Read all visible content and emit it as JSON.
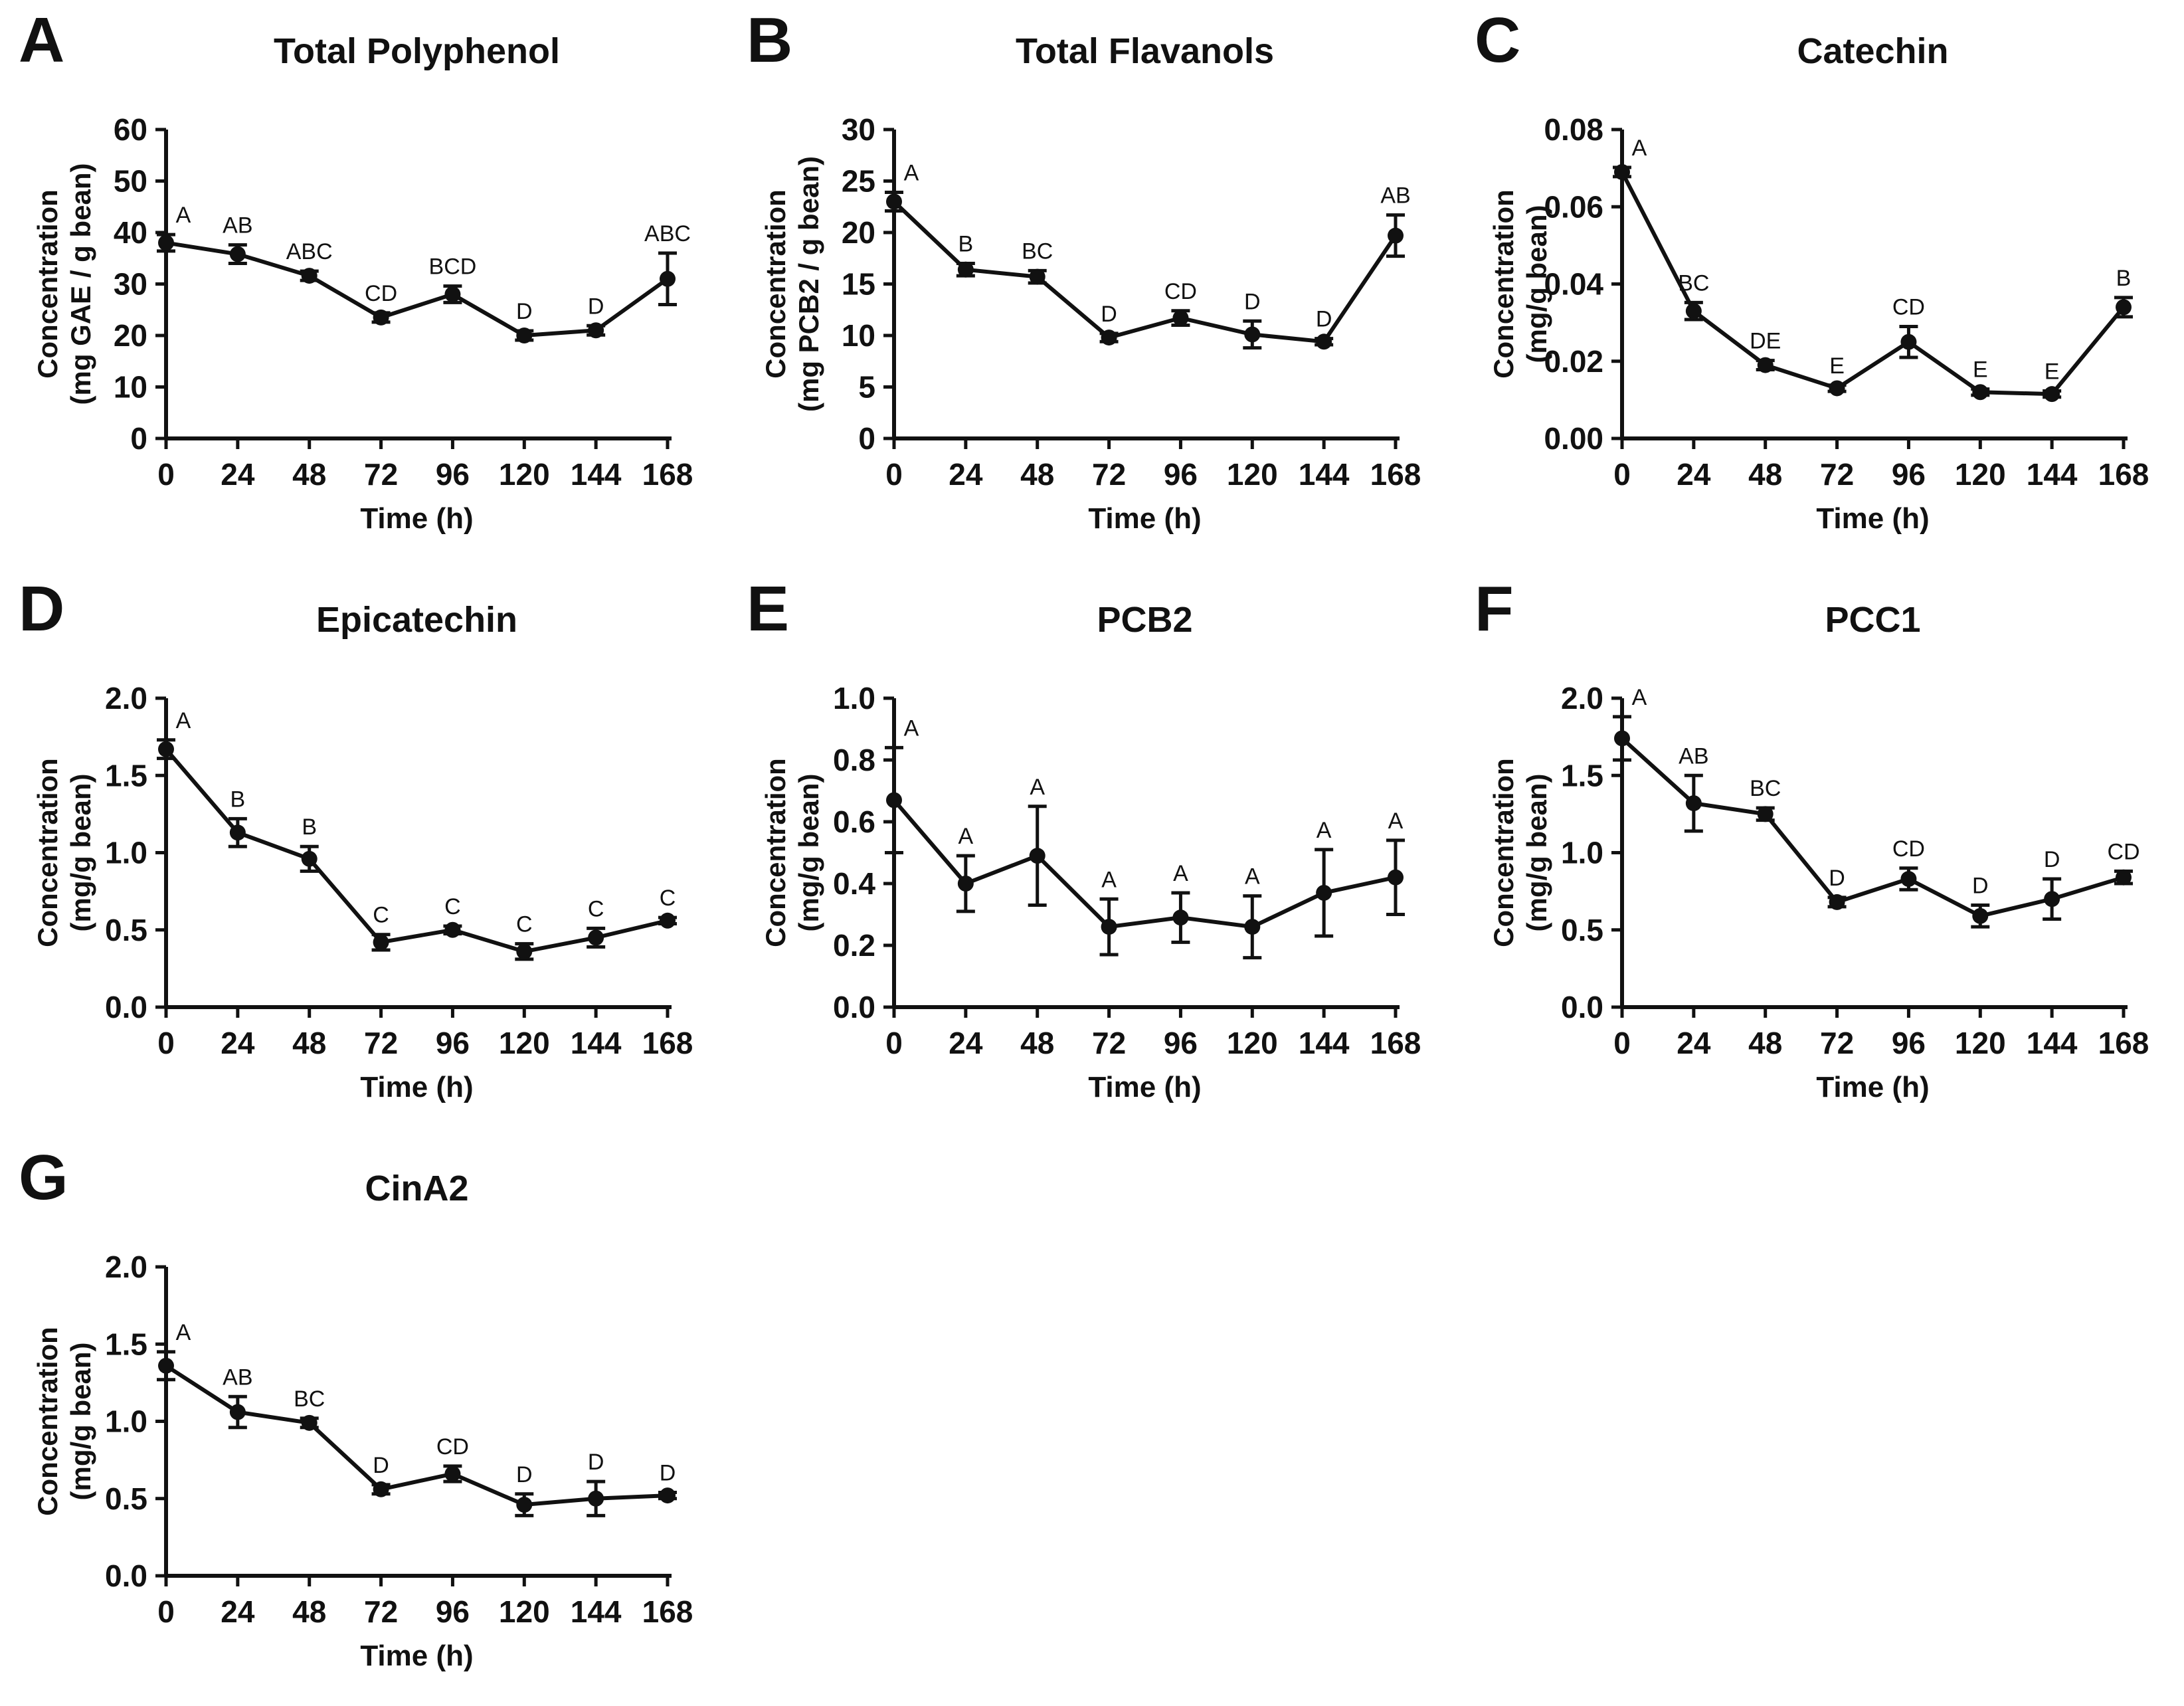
{
  "figure": {
    "background": "#ffffff",
    "ink_color": "#111111",
    "xlabel": "Time (h)",
    "x_categories": [
      "0",
      "24",
      "48",
      "72",
      "96",
      "120",
      "144",
      "168"
    ]
  },
  "chart_data": [
    {
      "type": "line",
      "panel": "A",
      "title": "Total Polyphenol",
      "ylabel_line1": "Concentration",
      "ylabel_line2": "(mg GAE / g bean)",
      "xlabel": "Time (h)",
      "x": [
        0,
        24,
        48,
        72,
        96,
        120,
        144,
        168
      ],
      "values": [
        38.0,
        35.8,
        31.6,
        23.5,
        28.0,
        20.0,
        21.0,
        31.0
      ],
      "errors": [
        1.6,
        1.8,
        0.9,
        0.9,
        1.6,
        0.9,
        0.9,
        5.0
      ],
      "point_labels": [
        "A",
        "AB",
        "ABC",
        "CD",
        "BCD",
        "D",
        "D",
        "ABC"
      ],
      "ylim": [
        0,
        60
      ],
      "yticks": [
        0,
        10,
        20,
        30,
        40,
        50,
        60
      ],
      "ytick_labels": [
        "0",
        "10",
        "20",
        "30",
        "40",
        "50",
        "60"
      ],
      "grid": false,
      "legend": null
    },
    {
      "type": "line",
      "panel": "B",
      "title": "Total Flavanols",
      "ylabel_line1": "Concentration",
      "ylabel_line2": "(mg PCB2 / g bean)",
      "xlabel": "Time (h)",
      "x": [
        0,
        24,
        48,
        72,
        96,
        120,
        144,
        168
      ],
      "values": [
        23.0,
        16.4,
        15.7,
        9.8,
        11.7,
        10.1,
        9.4,
        19.7
      ],
      "errors": [
        0.9,
        0.6,
        0.6,
        0.4,
        0.7,
        1.3,
        0.3,
        2.0
      ],
      "point_labels": [
        "A",
        "B",
        "BC",
        "D",
        "CD",
        "D",
        "D",
        "AB"
      ],
      "ylim": [
        0,
        30
      ],
      "yticks": [
        0,
        5,
        10,
        15,
        20,
        25,
        30
      ],
      "ytick_labels": [
        "0",
        "5",
        "10",
        "15",
        "20",
        "25",
        "30"
      ],
      "grid": false,
      "legend": null
    },
    {
      "type": "line",
      "panel": "C",
      "title": "Catechin",
      "ylabel_line1": "Concentration",
      "ylabel_line2": "(mg/g bean)",
      "xlabel": "Time (h)",
      "x": [
        0,
        24,
        48,
        72,
        96,
        120,
        144,
        168
      ],
      "values": [
        0.069,
        0.033,
        0.019,
        0.013,
        0.025,
        0.012,
        0.0115,
        0.034
      ],
      "errors": [
        0.0012,
        0.0022,
        0.0012,
        0.0008,
        0.004,
        0.0008,
        0.0008,
        0.0025
      ],
      "point_labels": [
        "A",
        "BC",
        "DE",
        "E",
        "CD",
        "E",
        "E",
        "B"
      ],
      "ylim": [
        0,
        0.08
      ],
      "yticks": [
        0,
        0.02,
        0.04,
        0.06,
        0.08
      ],
      "ytick_labels": [
        "0.00",
        "0.02",
        "0.04",
        "0.06",
        "0.08"
      ],
      "grid": false,
      "legend": null
    },
    {
      "type": "line",
      "panel": "D",
      "title": "Epicatechin",
      "ylabel_line1": "Concentration",
      "ylabel_line2": "(mg/g bean)",
      "xlabel": "Time (h)",
      "x": [
        0,
        24,
        48,
        72,
        96,
        120,
        144,
        168
      ],
      "values": [
        1.67,
        1.13,
        0.96,
        0.42,
        0.5,
        0.36,
        0.45,
        0.56
      ],
      "errors": [
        0.06,
        0.09,
        0.08,
        0.05,
        0.025,
        0.05,
        0.06,
        0.02
      ],
      "point_labels": [
        "A",
        "B",
        "B",
        "C",
        "C",
        "C",
        "C",
        "C"
      ],
      "ylim": [
        0,
        2.0
      ],
      "yticks": [
        0,
        0.5,
        1.0,
        1.5,
        2.0
      ],
      "ytick_labels": [
        "0.0",
        "0.5",
        "1.0",
        "1.5",
        "2.0"
      ],
      "grid": false,
      "legend": null
    },
    {
      "type": "line",
      "panel": "E",
      "title": "PCB2",
      "ylabel_line1": "Concentration",
      "ylabel_line2": "(mg/g bean)",
      "xlabel": "Time (h)",
      "x": [
        0,
        24,
        48,
        72,
        96,
        120,
        144,
        168
      ],
      "values": [
        0.67,
        0.4,
        0.49,
        0.26,
        0.29,
        0.26,
        0.37,
        0.42
      ],
      "errors": [
        0.17,
        0.09,
        0.16,
        0.09,
        0.08,
        0.1,
        0.14,
        0.12
      ],
      "point_labels": [
        "A",
        "A",
        "A",
        "A",
        "A",
        "A",
        "A",
        "A"
      ],
      "ylim": [
        0,
        1.0
      ],
      "yticks": [
        0,
        0.2,
        0.4,
        0.6,
        0.8,
        1.0
      ],
      "ytick_labels": [
        "0.0",
        "0.2",
        "0.4",
        "0.6",
        "0.8",
        "1.0"
      ],
      "grid": false,
      "legend": null
    },
    {
      "type": "line",
      "panel": "F",
      "title": "PCC1",
      "ylabel_line1": "Concentration",
      "ylabel_line2": "(mg/g bean)",
      "xlabel": "Time (h)",
      "x": [
        0,
        24,
        48,
        72,
        96,
        120,
        144,
        168
      ],
      "values": [
        1.74,
        1.32,
        1.25,
        0.68,
        0.83,
        0.59,
        0.7,
        0.84
      ],
      "errors": [
        0.14,
        0.18,
        0.04,
        0.03,
        0.07,
        0.07,
        0.13,
        0.04
      ],
      "point_labels": [
        "A",
        "AB",
        "BC",
        "D",
        "CD",
        "D",
        "D",
        "CD"
      ],
      "ylim": [
        0,
        2.0
      ],
      "yticks": [
        0,
        0.5,
        1.0,
        1.5,
        2.0
      ],
      "ytick_labels": [
        "0.0",
        "0.5",
        "1.0",
        "1.5",
        "2.0"
      ],
      "grid": false,
      "legend": null
    },
    {
      "type": "line",
      "panel": "G",
      "title": "CinA2",
      "ylabel_line1": "Concentration",
      "ylabel_line2": "(mg/g bean)",
      "xlabel": "Time (h)",
      "x": [
        0,
        24,
        48,
        72,
        96,
        120,
        144,
        168
      ],
      "values": [
        1.36,
        1.06,
        0.99,
        0.56,
        0.66,
        0.46,
        0.5,
        0.52
      ],
      "errors": [
        0.09,
        0.1,
        0.03,
        0.03,
        0.05,
        0.07,
        0.11,
        0.02
      ],
      "point_labels": [
        "A",
        "AB",
        "BC",
        "D",
        "CD",
        "D",
        "D",
        "D"
      ],
      "ylim": [
        0,
        2.0
      ],
      "yticks": [
        0,
        0.5,
        1.0,
        1.5,
        2.0
      ],
      "ytick_labels": [
        "0.0",
        "0.5",
        "1.0",
        "1.5",
        "2.0"
      ],
      "grid": false,
      "legend": null
    }
  ]
}
